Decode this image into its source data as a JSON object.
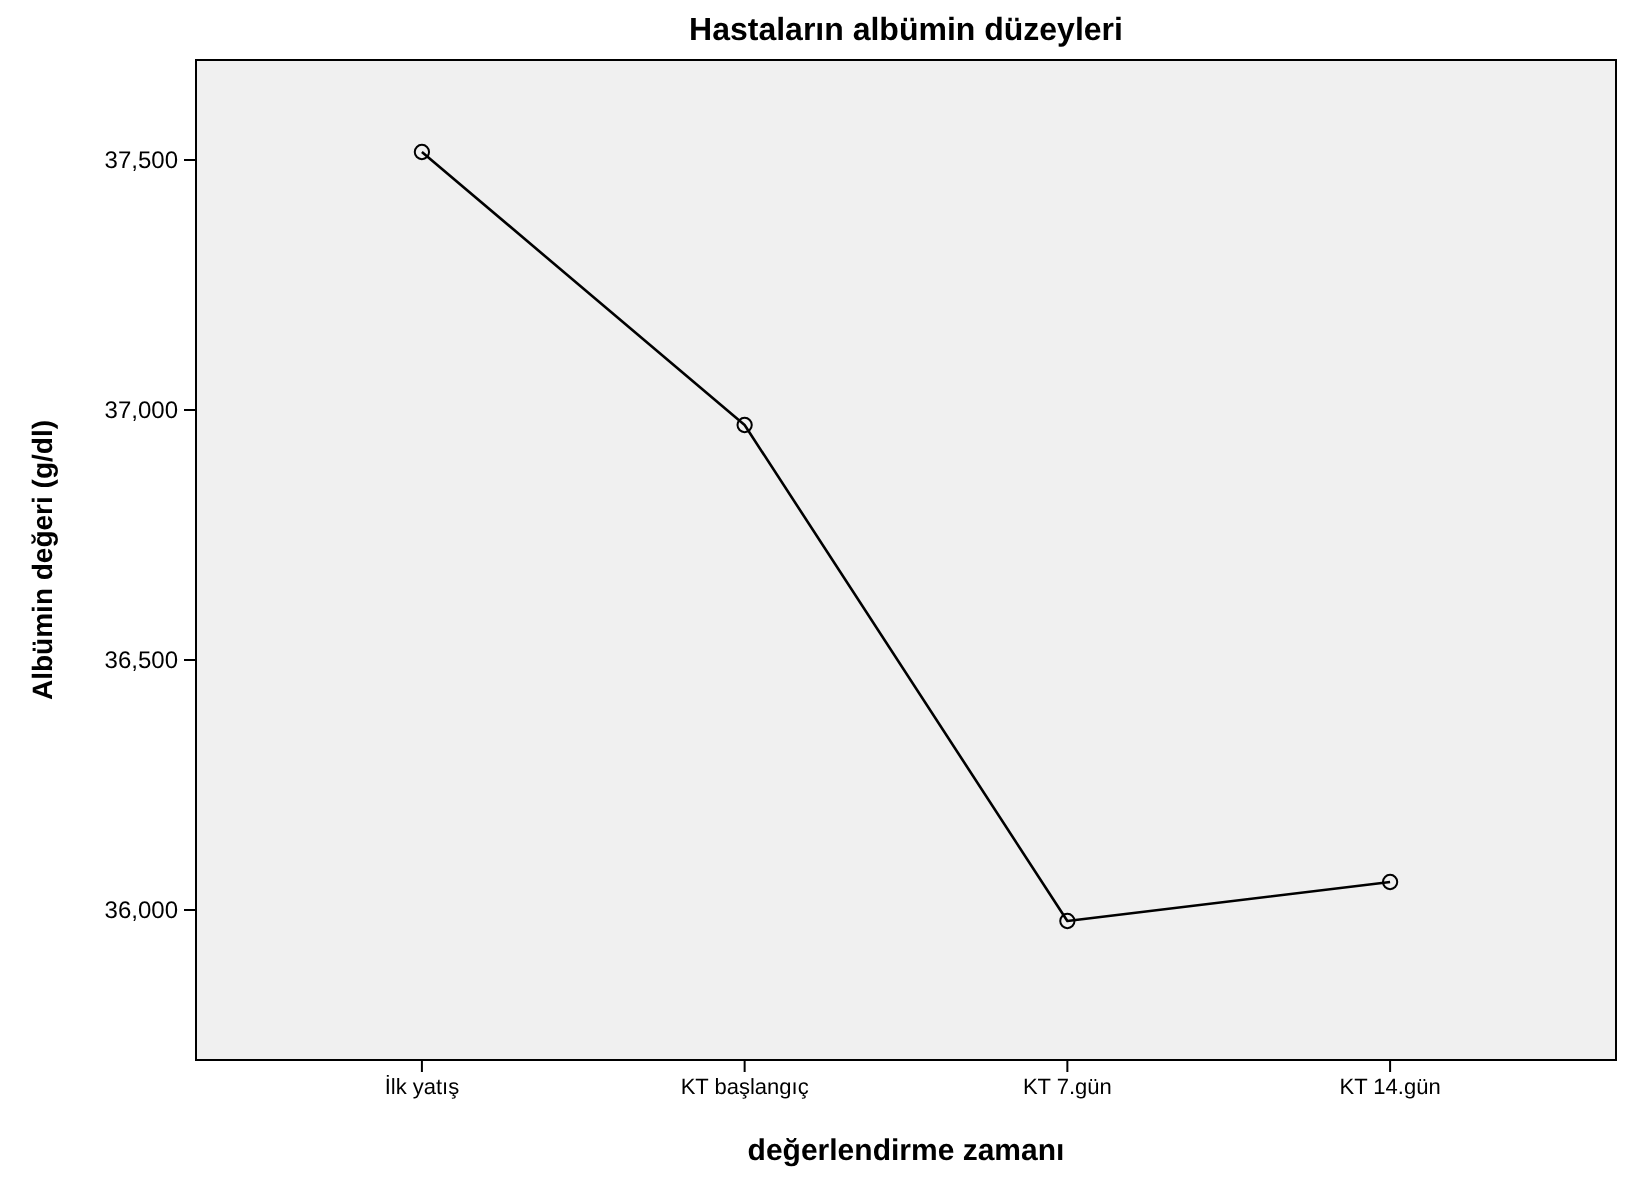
{
  "chart_data": {
    "type": "line",
    "title": "Hastaların albümin düzeyleri",
    "xlabel": "değerlendirme zamanı",
    "ylabel": "Albümin değeri (g/dl)",
    "categories": [
      "İlk yatış",
      "KT başlangıç",
      "KT 7.gün",
      "KT 14.gün"
    ],
    "series": [
      {
        "color": "#000000",
        "values": [
          37516,
          36970,
          35978,
          36056
        ]
      }
    ],
    "ylim": [
      35700,
      37700
    ],
    "yticks": [
      {
        "value": 36000,
        "label": "36,000"
      },
      {
        "value": 36500,
        "label": "36,500"
      },
      {
        "value": 37000,
        "label": "37,000"
      },
      {
        "value": 37500,
        "label": "37,500"
      }
    ],
    "marker": "circle",
    "line_style": "solid",
    "grid": false
  }
}
